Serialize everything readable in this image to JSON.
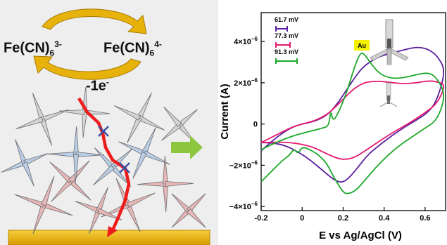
{
  "scheme": {
    "left_species": {
      "base": "Fe(CN)",
      "sub": "6",
      "sup": "3-"
    },
    "right_species": {
      "base": "Fe(CN)",
      "sub": "6",
      "sup": "4-"
    },
    "electron": {
      "base": "-1e",
      "sup": "-"
    }
  },
  "colors": {
    "purple": "#5b1f9e",
    "pink": "#e6196e",
    "green": "#1ea82a",
    "arrow_gold": "#e8b20c",
    "gold_substrate": "#e6ac00",
    "path_red": "#ee1c1c",
    "block_x": "#3b4fa0",
    "green_arrow": "#8dc63f"
  },
  "chart_data": {
    "type": "line",
    "xlabel": "E vs Ag/AgCl (V)",
    "ylabel": "Current (A)",
    "xlim": [
      -0.2,
      0.7
    ],
    "ylim": [
      -4.2e-06,
      5.4e-06
    ],
    "x_ticks": [
      {
        "value": -0.2,
        "label": "-0.2"
      },
      {
        "value": 0.0,
        "label": "0"
      },
      {
        "value": 0.2,
        "label": "0.2"
      },
      {
        "value": 0.4,
        "label": "0.4"
      },
      {
        "value": 0.6,
        "label": "0.6"
      }
    ],
    "y_ticks": [
      {
        "value": -4e-06,
        "base": "−4×10",
        "exp": "−6"
      },
      {
        "value": -2e-06,
        "base": "−2×10",
        "exp": "−6"
      },
      {
        "value": 0,
        "base": "0",
        "exp": ""
      },
      {
        "value": 2e-06,
        "base": "2×10",
        "exp": "−6"
      },
      {
        "value": 4e-06,
        "base": "4×10",
        "exp": "−6"
      }
    ],
    "legend": [
      {
        "label": "61.7 mV",
        "color": "#5b1f9e"
      },
      {
        "label": "77.3 mV",
        "color": "#e6196e"
      },
      {
        "label": "91.3 mV",
        "color": "#1ea82a"
      }
    ],
    "annotation": "Au",
    "series": [
      {
        "color": "#5b1f9e",
        "x": [
          -0.2,
          -0.12,
          -0.05,
          0.0,
          0.05,
          0.1,
          0.14,
          0.18,
          0.22,
          0.26,
          0.3,
          0.36,
          0.42,
          0.48,
          0.54,
          0.58,
          0.62,
          0.66,
          0.7,
          0.66,
          0.62,
          0.56,
          0.5,
          0.44,
          0.38,
          0.32,
          0.28,
          0.24,
          0.2,
          0.16,
          0.1,
          0.04,
          -0.02,
          -0.08,
          -0.14,
          -0.2
        ],
        "y": [
          -1.3e-06,
          -6e-07,
          -1.5e-07,
          0.0,
          1e-07,
          3e-07,
          6e-07,
          1.1e-06,
          1.7e-06,
          2.3e-06,
          2.8e-06,
          3.2e-06,
          3.4e-06,
          3.55e-06,
          3.7e-06,
          3.72e-06,
          3.6e-06,
          3.3e-06,
          2.6e-06,
          1.2e-06,
          6e-07,
          2e-07,
          -1.5e-07,
          -5.5e-07,
          -1e-06,
          -1.5e-06,
          -2e-06,
          -2.5e-06,
          -2.85e-06,
          -2.75e-06,
          -2.25e-06,
          -1.75e-06,
          -1.35e-06,
          -1.05e-06,
          -9.2e-07,
          -9e-07
        ]
      },
      {
        "color": "#e6196e",
        "x": [
          -0.2,
          -0.12,
          -0.05,
          0.0,
          0.06,
          0.12,
          0.16,
          0.2,
          0.24,
          0.28,
          0.32,
          0.38,
          0.44,
          0.5,
          0.56,
          0.62,
          0.66,
          0.7,
          0.66,
          0.6,
          0.54,
          0.48,
          0.42,
          0.36,
          0.3,
          0.26,
          0.22,
          0.18,
          0.12,
          0.06,
          0.0,
          -0.06,
          -0.12,
          -0.2
        ],
        "y": [
          -9e-07,
          -5e-07,
          -1.5e-07,
          0.0,
          1.5e-07,
          4.5e-07,
          8e-07,
          1.2e-06,
          1.6e-06,
          1.9e-06,
          2.05e-06,
          2.08e-06,
          2e-06,
          1.95e-06,
          2e-06,
          2.1e-06,
          2.05e-06,
          1.9e-06,
          1e-06,
          5.5e-07,
          1.5e-07,
          -2e-07,
          -5.5e-07,
          -9.5e-07,
          -1.35e-06,
          -1.6e-06,
          -1.72e-06,
          -1.7e-06,
          -1.45e-06,
          -1.15e-06,
          -9.8e-07,
          -9e-07,
          -8.8e-07,
          -9e-07
        ]
      },
      {
        "color": "#1ea82a",
        "x": [
          -0.2,
          -0.14,
          -0.08,
          -0.02,
          0.04,
          0.1,
          0.13,
          0.14,
          0.15,
          0.18,
          0.22,
          0.25,
          0.28,
          0.3,
          0.33,
          0.38,
          0.44,
          0.5,
          0.56,
          0.62,
          0.66,
          0.7,
          0.66,
          0.6,
          0.54,
          0.48,
          0.42,
          0.36,
          0.3,
          0.26,
          0.22,
          0.2,
          0.18,
          0.15,
          0.12,
          0.08,
          0.04,
          0.0,
          -0.02,
          -0.04,
          -0.06,
          -0.1,
          -0.15,
          -0.2
        ],
        "y": [
          -1.25e-06,
          -9.5e-07,
          -7e-07,
          -5e-07,
          -3.5e-07,
          -2e-07,
          -1e-07,
          7e-07,
          1e-07,
          6e-07,
          1.6e-06,
          2.6e-06,
          3.4e-06,
          3.45e-06,
          3e-06,
          2.4e-06,
          2.2e-06,
          2.25e-06,
          2.4e-06,
          2.5e-06,
          2.2e-06,
          1.4e-06,
          2e-07,
          -2e-07,
          -6e-07,
          -1e-06,
          -1.5e-06,
          -2.1e-06,
          -2.8e-06,
          -3.25e-06,
          -3.4e-06,
          -3.3e-06,
          -3e-06,
          -2.5e-06,
          -1.9e-06,
          -1.5e-06,
          -1.25e-06,
          -1.1e-06,
          -1.45e-06,
          -1.2e-06,
          -1.5e-06,
          -1.8e-06,
          -2.3e-06,
          -2.8e-06
        ]
      }
    ]
  }
}
